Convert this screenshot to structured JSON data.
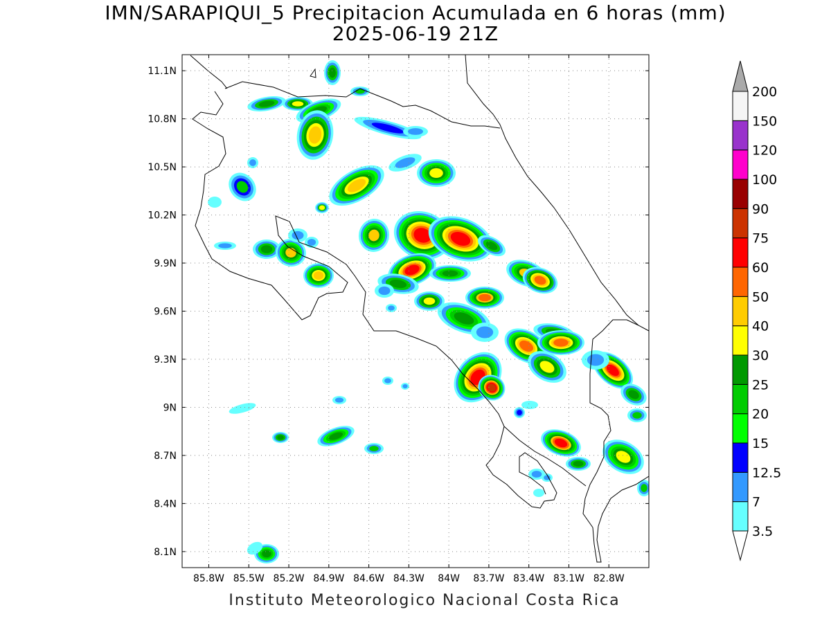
{
  "header": {
    "title": "IMN/SARAPIQUI_5 Precipitacion Acumulada en 6 horas (mm)",
    "datetime": "2025-06-19 21Z"
  },
  "map": {
    "lon_range": [
      -86.0,
      -82.5
    ],
    "lat_range": [
      8.0,
      11.2
    ],
    "lat_ticks": [
      "11.1N",
      "10.8N",
      "10.5N",
      "10.2N",
      "9.9N",
      "9.6N",
      "9.3N",
      "9N",
      "8.7N",
      "8.4N",
      "8.1N"
    ],
    "lon_ticks": [
      "85.8W",
      "85.5W",
      "85.2W",
      "84.9W",
      "84.6W",
      "84.3W",
      "84W",
      "83.7W",
      "83.4W",
      "83.1W",
      "82.8W"
    ],
    "grid": "dotted"
  },
  "legend": {
    "levels": [
      "3.5",
      "7",
      "12.5",
      "15",
      "20",
      "25",
      "30",
      "40",
      "50",
      "60",
      "75",
      "90",
      "100",
      "120",
      "150",
      "200"
    ],
    "colors": [
      "#66ffff",
      "#3399ff",
      "#0000ff",
      "#00ff00",
      "#00cc00",
      "#009900",
      "#ffff00",
      "#ffcc00",
      "#ff6600",
      "#ff0000",
      "#cc3300",
      "#990000",
      "#ff00cc",
      "#9933cc",
      "#f5f5f5",
      "#aaaaaa"
    ]
  },
  "footer": {
    "credit": "Instituto Meteorologico Nacional Costa Rica"
  }
}
